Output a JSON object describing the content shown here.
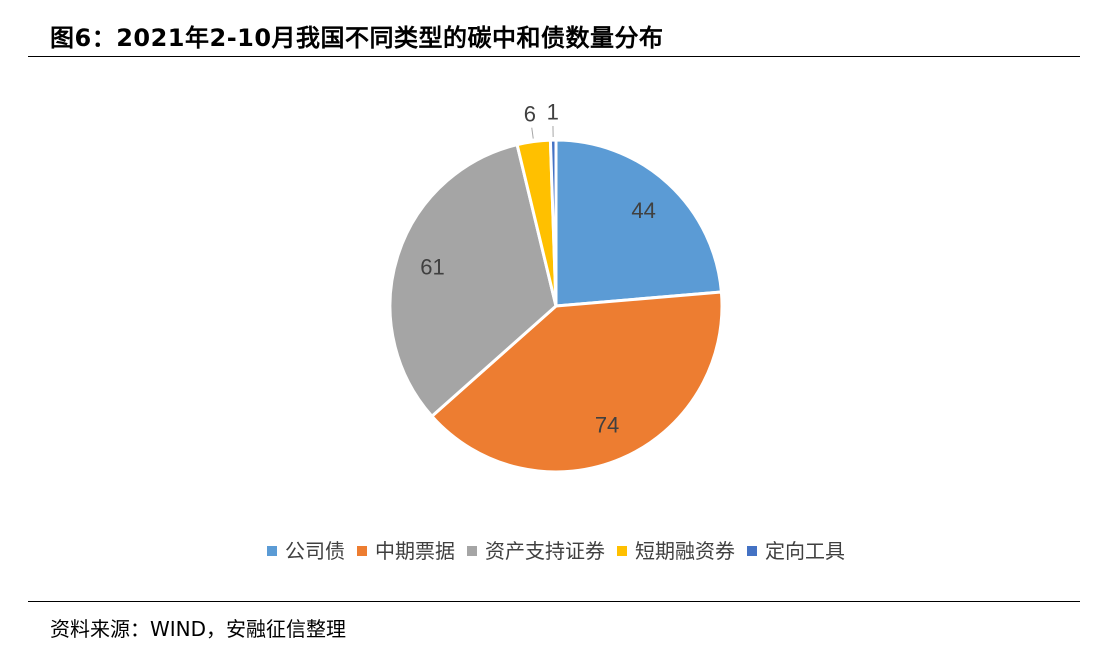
{
  "title": "图6：2021年2-10月我国不同类型的碳中和债数量分布",
  "source": "资料来源：WIND，安融征信整理",
  "chart_data": {
    "type": "pie",
    "title": "",
    "categories": [
      "公司债",
      "中期票据",
      "资产支持证券",
      "短期融资券",
      "定向工具"
    ],
    "values": [
      44,
      74,
      61,
      6,
      1
    ],
    "colors": [
      "#5B9BD5",
      "#ED7D31",
      "#A5A5A5",
      "#FFC000",
      "#4472C4"
    ],
    "legend_position": "bottom"
  }
}
